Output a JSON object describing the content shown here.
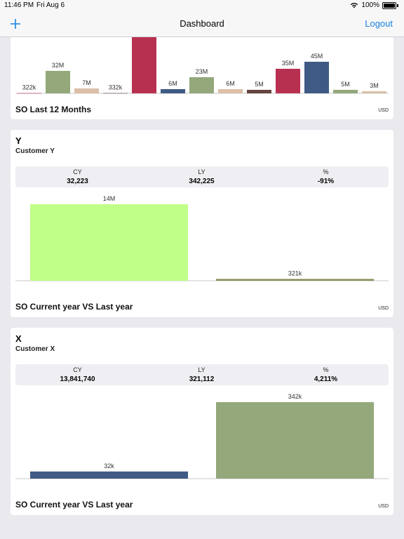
{
  "status_bar": {
    "time": "11:46 PM",
    "date": "Fri Aug 6",
    "battery": "100%"
  },
  "nav": {
    "title": "Dashboard",
    "add_icon": "plus-icon",
    "logout_label": "Logout"
  },
  "colors": {
    "accent": "#1a82e2",
    "crimson": "#b8304f",
    "navy": "#3f5a84",
    "olive": "#94a87c",
    "tan": "#dbbfa7",
    "brown": "#65443f",
    "lime": "#c0ff88",
    "darkolive": "#8a8b58"
  },
  "monthly_card": {
    "title": "SO Last 12 Months",
    "currency": "USD",
    "chart_data": {
      "type": "bar",
      "bars": [
        {
          "label": "322k",
          "value": 0.322,
          "color": "#b8304f"
        },
        {
          "label": "32M",
          "value": 32,
          "color": "#94a87c"
        },
        {
          "label": "7M",
          "value": 7,
          "color": "#dbbfa7"
        },
        {
          "label": "332k",
          "value": 0.332,
          "color": "#65443f"
        },
        {
          "label": "",
          "value": 80,
          "color": "#b8304f"
        },
        {
          "label": "6M",
          "value": 6,
          "color": "#3f5a84"
        },
        {
          "label": "23M",
          "value": 23,
          "color": "#94a87c"
        },
        {
          "label": "6M",
          "value": 6,
          "color": "#dbbfa7"
        },
        {
          "label": "5M",
          "value": 5,
          "color": "#65443f"
        },
        {
          "label": "35M",
          "value": 35,
          "color": "#b8304f"
        },
        {
          "label": "45M",
          "value": 45,
          "color": "#3f5a84"
        },
        {
          "label": "5M",
          "value": 5,
          "color": "#94a87c"
        },
        {
          "label": "3M",
          "value": 3,
          "color": "#dbbfa7"
        }
      ]
    }
  },
  "customer_y": {
    "title": "Y",
    "subtitle": "Customer Y",
    "stats": {
      "cy_label": "CY",
      "cy_value": "32,223",
      "ly_label": "LY",
      "ly_value": "342,225",
      "pct_label": "%",
      "pct_value": "-91%"
    },
    "chart_title": "SO Current year VS Last year",
    "currency": "USD",
    "chart_data": {
      "type": "bar",
      "bars": [
        {
          "label": "14M",
          "value": 14000,
          "color": "#c0ff88"
        },
        {
          "label": "321k",
          "value": 321,
          "color": "#8a8b58"
        }
      ]
    }
  },
  "customer_x": {
    "title": "X",
    "subtitle": "Customer X",
    "stats": {
      "cy_label": "CY",
      "cy_value": "13,841,740",
      "ly_label": "LY",
      "ly_value": "321,112",
      "pct_label": "%",
      "pct_value": "4,211%"
    },
    "chart_title": "SO Current year VS Last year",
    "currency": "USD",
    "chart_data": {
      "type": "bar",
      "bars": [
        {
          "label": "32k",
          "value": 32,
          "color": "#3f5a84"
        },
        {
          "label": "342k",
          "value": 342,
          "color": "#94a87c"
        }
      ]
    }
  }
}
